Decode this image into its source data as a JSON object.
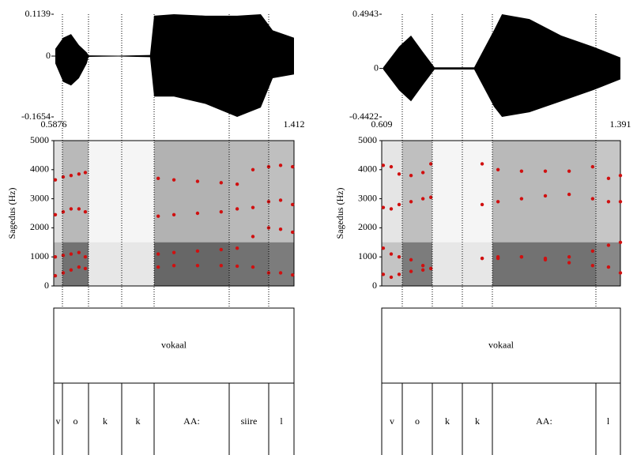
{
  "panels": [
    {
      "xlim": [
        0.5876,
        1.412
      ],
      "waveform": {
        "ylim": [
          -0.1654,
          0.1139
        ],
        "yticks": [
          -0.1654,
          0,
          0.1139
        ],
        "x": [
          0.593,
          0.62,
          0.647,
          0.674,
          0.701,
          0.707,
          0.81,
          0.918,
          0.932,
          1.0,
          1.108,
          1.217,
          1.298,
          1.339,
          1.412
        ],
        "upper": [
          0.02,
          0.05,
          0.06,
          0.03,
          0.01,
          0.002,
          0.001,
          0.003,
          0.11,
          0.1139,
          0.11,
          0.11,
          0.1139,
          0.07,
          0.05
        ],
        "lower": [
          -0.02,
          -0.07,
          -0.08,
          -0.06,
          -0.02,
          -0.002,
          -0.001,
          -0.003,
          -0.11,
          -0.11,
          -0.13,
          -0.1654,
          -0.14,
          -0.06,
          -0.05
        ]
      },
      "spectrogram": {
        "ylabel": "Sagedus (Hz)",
        "ylim": [
          0,
          5000
        ],
        "yticks": [
          0,
          1000,
          2000,
          3000,
          4000,
          5000
        ],
        "color": "#d01010",
        "x": [
          0.593,
          0.62,
          0.647,
          0.674,
          0.696,
          0.81,
          0.946,
          1.0,
          1.081,
          1.162,
          1.217,
          1.271,
          1.325,
          1.366,
          1.407
        ],
        "series": [
          {
            "values": [
              350,
              450,
              550,
              650,
              600,
              null,
              650,
              700,
              700,
              700,
              680,
              650,
              450,
              450,
              380
            ]
          },
          {
            "values": [
              1000,
              1050,
              1100,
              1150,
              1000,
              null,
              1100,
              1150,
              1200,
              1250,
              1300,
              1700,
              2000,
              1950,
              1850
            ]
          },
          {
            "values": [
              2450,
              2550,
              2650,
              2650,
              2550,
              null,
              2400,
              2450,
              2500,
              2550,
              2650,
              2700,
              2900,
              2950,
              2800
            ]
          },
          {
            "values": [
              3650,
              3750,
              3800,
              3850,
              3900,
              null,
              3700,
              3650,
              3600,
              3550,
              3500,
              4000,
              4100,
              4150,
              4100
            ]
          }
        ]
      },
      "tiers": [
        {
          "boundaries": [],
          "labels": [
            "vokaal"
          ]
        },
        {
          "boundaries": [
            0.6174,
            0.7069,
            0.8208,
            0.932,
            1.1896,
            1.3252
          ],
          "labels": [
            "v",
            "o",
            "k",
            "k",
            "AA:",
            "siire",
            "l"
          ]
        }
      ]
    },
    {
      "xlim": [
        0.609,
        1.391
      ],
      "waveform": {
        "ylim": [
          -0.4422,
          0.4943
        ],
        "yticks": [
          -0.4422,
          0,
          0.4943
        ],
        "x": [
          0.614,
          0.666,
          0.705,
          0.744,
          0.782,
          0.912,
          0.977,
          1.003,
          1.093,
          1.197,
          1.3,
          1.391
        ],
        "upper": [
          0.01,
          0.2,
          0.3,
          0.15,
          0.01,
          0.01,
          0.35,
          0.4943,
          0.45,
          0.3,
          0.2,
          0.1
        ],
        "lower": [
          -0.01,
          -0.2,
          -0.3,
          -0.15,
          -0.01,
          -0.01,
          -0.35,
          -0.4422,
          -0.4,
          -0.3,
          -0.2,
          -0.1
        ]
      },
      "spectrogram": {
        "ylabel": "Sagedus (Hz)",
        "ylim": [
          0,
          5000
        ],
        "yticks": [
          0,
          1000,
          2000,
          3000,
          4000,
          5000
        ],
        "color": "#d01010",
        "x": [
          0.614,
          0.64,
          0.666,
          0.705,
          0.744,
          0.77,
          0.847,
          0.938,
          0.99,
          1.067,
          1.145,
          1.223,
          1.3,
          1.352,
          1.391
        ],
        "series": [
          {
            "values": [
              400,
              300,
              400,
              500,
              550,
              600,
              null,
              950,
              950,
              1000,
              950,
              800,
              700,
              650,
              450
            ]
          },
          {
            "values": [
              1300,
              1100,
              1000,
              900,
              700,
              600,
              null,
              950,
              1000,
              1000,
              900,
              1000,
              1200,
              1400,
              1500
            ]
          },
          {
            "values": [
              2700,
              2650,
              2800,
              2900,
              3000,
              3050,
              null,
              2800,
              2900,
              3000,
              3100,
              3150,
              3000,
              2900,
              2900
            ]
          },
          {
            "values": [
              4150,
              4100,
              3850,
              3800,
              3900,
              4200,
              null,
              4200,
              4000,
              3950,
              3950,
              3950,
              4100,
              3700,
              3800
            ]
          }
        ]
      },
      "tiers": [
        {
          "boundaries": [],
          "labels": [
            "vokaal"
          ]
        },
        {
          "boundaries": [
            0.6763,
            0.7747,
            0.8731,
            0.9715,
            1.3107
          ],
          "labels": [
            "v",
            "o",
            "k",
            "k",
            "AA:",
            "l"
          ]
        }
      ]
    }
  ]
}
